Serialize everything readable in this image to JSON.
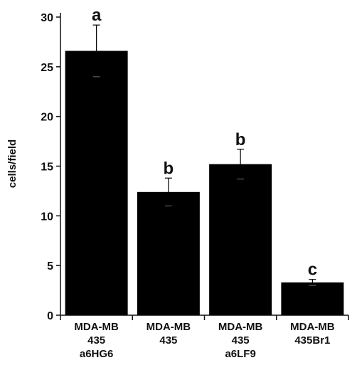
{
  "chart_data": {
    "type": "bar",
    "title": "",
    "xlabel": "",
    "ylabel": "cells/field",
    "ylim": [
      0,
      30
    ],
    "yticks": [
      0,
      5,
      10,
      15,
      20,
      25,
      30
    ],
    "grid": false,
    "categories": [
      [
        "MDA-MB",
        "435",
        "a6HG6"
      ],
      [
        "MDA-MB",
        "435"
      ],
      [
        "MDA-MB",
        "435",
        "a6LF9"
      ],
      [
        "MDA-MB",
        "435Br1"
      ]
    ],
    "values": [
      26.6,
      12.4,
      15.2,
      3.3
    ],
    "errors": [
      2.6,
      1.4,
      1.5,
      0.3
    ],
    "significance": [
      "a",
      "b",
      "b",
      "c"
    ],
    "colors": {
      "bar": "#000000",
      "axis": "#111111"
    }
  }
}
